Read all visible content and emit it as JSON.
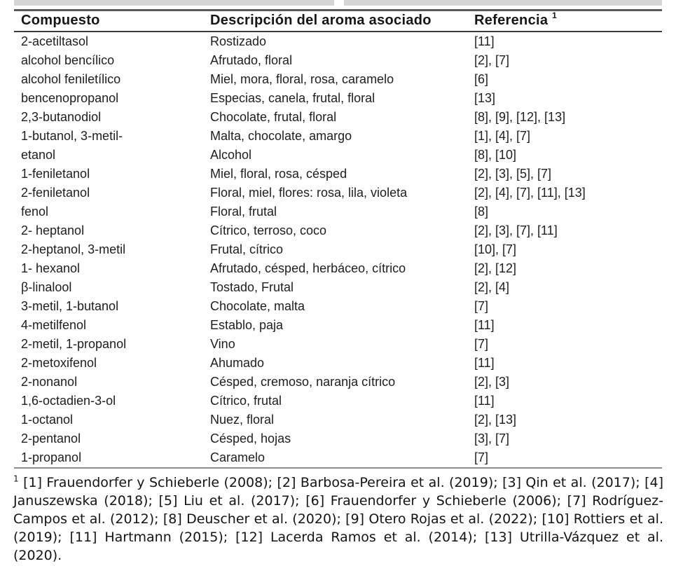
{
  "page": {
    "background": "#ffffff",
    "text_color": "#1e1e1e",
    "rule_top_color": "#5a5a5a",
    "rule_header_color": "#3e3e3e",
    "rule_bottom_color": "#8a8a8a",
    "scan_artifact_color": "#d6d6d6"
  },
  "table": {
    "columns": [
      {
        "label": "Compuesto"
      },
      {
        "label": "Descripción del aroma asociado"
      },
      {
        "label": "Referencia",
        "superscript": "1"
      }
    ],
    "rows": [
      {
        "compuesto": "2-acetiltasol",
        "descripcion": "Rostizado",
        "referencia": "[11]"
      },
      {
        "compuesto": "alcohol bencílico",
        "descripcion": "Afrutado, floral",
        "referencia": "[2], [7]"
      },
      {
        "compuesto": "alcohol feniletílico",
        "descripcion": "Miel, mora, floral, rosa, caramelo",
        "referencia": "[6]"
      },
      {
        "compuesto": "bencenopropanol",
        "descripcion": "Especias, canela, frutal, floral",
        "referencia": "[13]"
      },
      {
        "compuesto": "2,3-butanodiol",
        "descripcion": "Chocolate, frutal, floral",
        "referencia": "[8], [9], [12], [13]"
      },
      {
        "compuesto": "1-butanol, 3-metil-",
        "descripcion": "Malta, chocolate, amargo",
        "referencia": "[1], [4], [7]"
      },
      {
        "compuesto": "etanol",
        "descripcion": "Alcohol",
        "referencia": "[8], [10]"
      },
      {
        "compuesto": "1-feniletanol",
        "descripcion": "Miel, floral, rosa, césped",
        "referencia": "[2], [3], [5], [7]"
      },
      {
        "compuesto": "2-feniletanol",
        "descripcion": "Floral, miel, flores: rosa, lila, violeta",
        "referencia": "[2], [4], [7], [11], [13]"
      },
      {
        "compuesto": "fenol",
        "descripcion": "Floral, frutal",
        "referencia": "[8]"
      },
      {
        "compuesto": "2- heptanol",
        "descripcion": "Cítrico, terroso, coco",
        "referencia": "[2], [3], [7], [11]"
      },
      {
        "compuesto": "2-heptanol, 3-metil",
        "descripcion": "Frutal, cítrico",
        "referencia": "[10], [7]"
      },
      {
        "compuesto": "1- hexanol",
        "descripcion": "Afrutado, césped, herbáceo, cítrico",
        "referencia": "[2], [12]"
      },
      {
        "compuesto": "β-linalool",
        "descripcion": "Tostado, Frutal",
        "referencia": "[2], [4]"
      },
      {
        "compuesto": "3-metil, 1-butanol",
        "descripcion": "Chocolate, malta",
        "referencia": "[7]"
      },
      {
        "compuesto": "4-metilfenol",
        "descripcion": "Establo, paja",
        "referencia": "[11]"
      },
      {
        "compuesto": "2-metil, 1-propanol",
        "descripcion": "Vino",
        "referencia": "[7]"
      },
      {
        "compuesto": "2-metoxifenol",
        "descripcion": "Ahumado",
        "referencia": "[11]"
      },
      {
        "compuesto": "2-nonanol",
        "descripcion": "Césped, cremoso, naranja cítrico",
        "referencia": "[2], [3]"
      },
      {
        "compuesto": "1,6-octadien-3-ol",
        "descripcion": "Cítrico, frutal",
        "referencia": "[11]"
      },
      {
        "compuesto": "1-octanol",
        "descripcion": "Nuez, floral",
        "referencia": "[2], [13]"
      },
      {
        "compuesto": "2-pentanol",
        "descripcion": "Césped, hojas",
        "referencia": "[3], [7]"
      },
      {
        "compuesto": "1-propanol",
        "descripcion": "Caramelo",
        "referencia": "[7]"
      }
    ]
  },
  "footnote": {
    "marker": "1",
    "text": "[1] Frauendorfer y Schieberle (2008); [2] Barbosa-Pereira et al. (2019); [3] Qin et al. (2017); [4] Januszewska (2018); [5] Liu et al. (2017); [6] Frauendorfer y Schieberle (2006); [7] Rodríguez-Campos et al. (2012); [8] Deuscher et al. (2020); [9] Otero Rojas et al. (2022); [10] Rottiers et al. (2019); [11] Hartmann (2015); [12] Lacerda Ramos et al. (2014); [13] Utrilla-Vázquez et al. (2020)."
  }
}
